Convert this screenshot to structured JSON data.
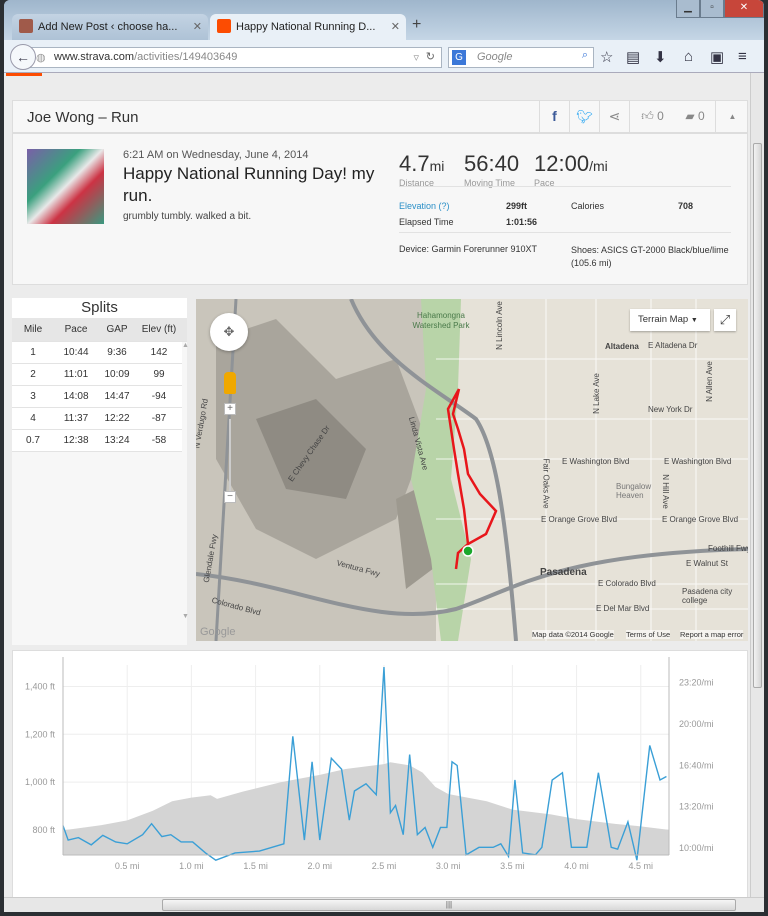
{
  "browser": {
    "tabs": [
      {
        "label": "Add New Post ‹ choose ha...",
        "active": false
      },
      {
        "label": "Happy National Running D...",
        "active": true
      }
    ],
    "url_host": "www.strava.com",
    "url_path": "/activities/149403649",
    "search_placeholder": "Google",
    "search_engine": "G"
  },
  "activity": {
    "header_title": "Joe Wong – Run",
    "kudos_count": "0",
    "comment_count": "0",
    "timestamp": "6:21 AM on Wednesday, June 4, 2014",
    "title": "Happy National Running Day! my run.",
    "description": "grumbly tumbly. walked a bit.",
    "stats": {
      "distance": {
        "value": "4.7",
        "unit": "mi",
        "label": "Distance"
      },
      "moving_time": {
        "value": "56:40",
        "label": "Moving Time"
      },
      "pace": {
        "value": "12:00",
        "unit": "/mi",
        "label": "Pace"
      }
    },
    "elevation_label": "Elevation (?)",
    "elevation_value": "299ft",
    "calories_label": "Calories",
    "calories_value": "708",
    "elapsed_label": "Elapsed Time",
    "elapsed_value": "1:01:56",
    "device": "Device: Garmin Forerunner 910XT",
    "shoes": "Shoes: ASICS GT-2000 Black/blue/lime (105.6 mi)"
  },
  "splits": {
    "title": "Splits",
    "columns": [
      "Mile",
      "Pace",
      "GAP",
      "Elev (ft)"
    ],
    "rows": [
      [
        "1",
        "10:44",
        "9:36",
        "142"
      ],
      [
        "2",
        "11:01",
        "10:09",
        "99"
      ],
      [
        "3",
        "14:08",
        "14:47",
        "-94"
      ],
      [
        "4",
        "11:37",
        "12:22",
        "-87"
      ],
      [
        "0.7",
        "12:38",
        "13:24",
        "-58"
      ]
    ]
  },
  "map": {
    "type_selector": "Terrain Map",
    "attribution": "Map data ©2014 Google",
    "terms": "Terms of Use",
    "report": "Report a map error",
    "route_color": "#e8161b",
    "labels": [
      "Hahamongna Watershed Park",
      "Altadena",
      "E Altadena Dr",
      "New York Dr",
      "E Washington Blvd",
      "E Washington Blvd",
      "Bungalow Heaven",
      "E Orange Grove Blvd",
      "E Orange Grove Blvd",
      "Foothill Fwy",
      "Pasadena",
      "E Walnut St",
      "E Colorado Blvd",
      "E Del Mar Blvd",
      "Pasadena city college",
      "Ventura Fwy",
      "Colorado Blvd",
      "Linda Vista Ave",
      "N Lincoln Ave",
      "Fair Oaks Ave",
      "N Lake Ave",
      "N Hill Ave",
      "N Allen Ave",
      "E Chevy Chase Dr",
      "N Verdugo Rd",
      "Glendale Fwy"
    ]
  },
  "chart_data": {
    "type": "area+line",
    "x_unit": "mi",
    "xlim": [
      0,
      4.72
    ],
    "x_ticks": [
      "0.5 mi",
      "1.0 mi",
      "1.5 mi",
      "2.0 mi",
      "2.5 mi",
      "3.0 mi",
      "3.5 mi",
      "4.0 mi",
      "4.5 mi"
    ],
    "x_tick_values": [
      0.5,
      1.0,
      1.5,
      2.0,
      2.5,
      3.0,
      3.5,
      4.0,
      4.5
    ],
    "left_axis": {
      "ylim": [
        695,
        1490
      ],
      "ticks": [
        "800 ft",
        "1,000 ft",
        "1,200 ft",
        "1,400 ft"
      ],
      "tick_values": [
        800,
        1000,
        1200,
        1400
      ]
    },
    "right_axis": {
      "ylim": [
        "9:27",
        "24:44"
      ],
      "ticks": [
        "10:00/mi",
        "13:20/mi",
        "16:40/mi",
        "20:00/mi",
        "23:20/mi"
      ],
      "tick_values": [
        "10:00",
        "13:20",
        "16:40",
        "20:00",
        "23:20"
      ]
    },
    "grid": true,
    "series": [
      {
        "kind": "elevation-area",
        "axis": "left",
        "color": "#d4d4d4",
        "x": [
          0,
          0.3,
          0.5,
          0.7,
          0.85,
          1.0,
          1.15,
          1.2,
          1.4,
          1.7,
          2.0,
          2.2,
          2.5,
          2.55,
          2.7,
          2.8,
          2.9,
          3.0,
          3.3,
          3.5,
          3.8,
          4.0,
          4.3,
          4.5,
          4.72
        ],
        "y": [
          798,
          820,
          840,
          880,
          920,
          935,
          945,
          930,
          960,
          1000,
          1030,
          1055,
          1075,
          1083,
          1070,
          1040,
          980,
          950,
          920,
          885,
          865,
          845,
          825,
          815,
          800
        ]
      },
      {
        "kind": "pace-line",
        "axis": "right",
        "color": "#3a9fd6",
        "x": [
          0,
          0.04,
          0.12,
          0.22,
          0.31,
          0.41,
          0.5,
          0.62,
          0.69,
          0.77,
          0.84,
          0.92,
          1.01,
          1.11,
          1.19,
          1.34,
          1.53,
          1.72,
          1.79,
          1.88,
          1.94,
          2.0,
          2.09,
          2.17,
          2.23,
          2.27,
          2.36,
          2.44,
          2.5,
          2.55,
          2.59,
          2.65,
          2.7,
          2.76,
          2.82,
          2.88,
          2.94,
          2.99,
          3.03,
          3.07,
          3.14,
          3.24,
          3.35,
          3.41,
          3.47,
          3.52,
          3.58,
          3.68,
          3.73,
          3.81,
          3.89,
          3.96,
          4.08,
          4.17,
          4.27,
          4.32,
          4.4,
          4.47,
          4.57,
          4.65,
          4.7
        ],
        "y": [
          "11:49",
          "10:39",
          "10:51",
          "10:16",
          "11:02",
          "10:30",
          "10:21",
          "11:05",
          "11:58",
          "10:56",
          "11:05",
          "10:30",
          "10:30",
          "9:37",
          "9:02",
          "9:37",
          "9:46",
          "10:21",
          "19:00",
          "10:39",
          "16:57",
          "10:39",
          "17:14",
          "16:21",
          "12:15",
          "14:36",
          "15:11",
          "14:18",
          "24:34",
          "12:51",
          "13:26",
          "11:05",
          "17:32",
          "11:05",
          "11:40",
          "10:04",
          "11:40",
          "11:40",
          "16:57",
          "16:39",
          "9:28",
          "10:04",
          "10:04",
          "10:21",
          "9:20",
          "15:29",
          "9:37",
          "9:28",
          "10:04",
          "15:29",
          "16:04",
          "10:04",
          "10:04",
          "16:04",
          "10:04",
          "9:55",
          "12:07",
          "9:02",
          "18:16",
          "15:29",
          "15:46"
        ]
      }
    ]
  }
}
